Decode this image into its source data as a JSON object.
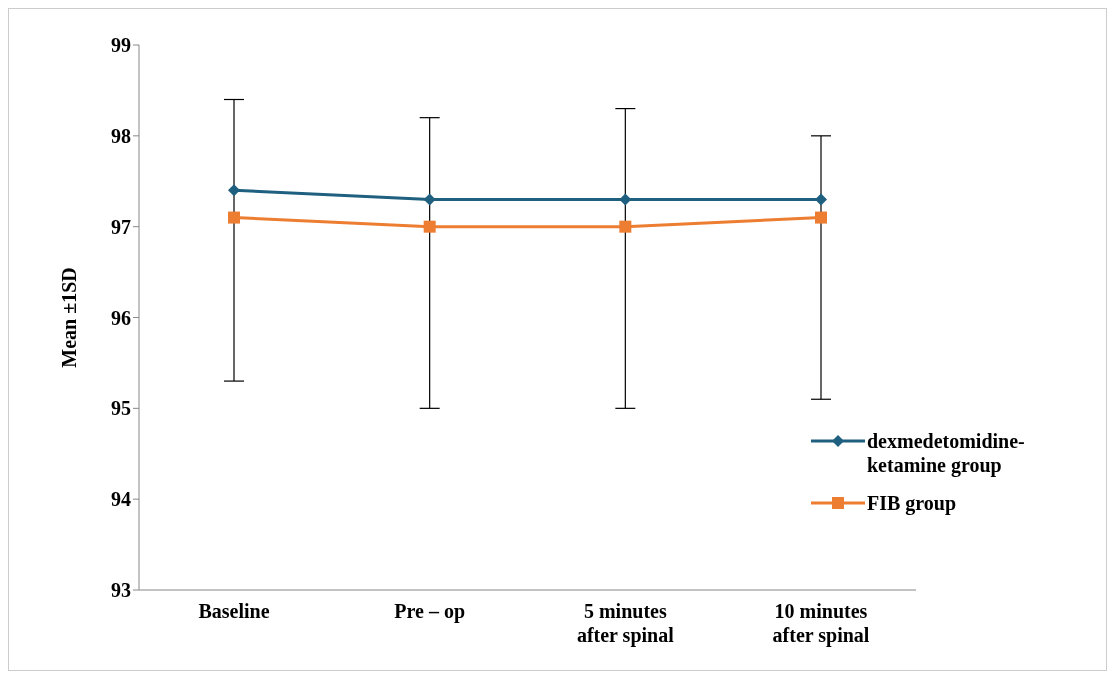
{
  "chart_data": {
    "type": "line",
    "ylabel": "Mean ±1SD",
    "categories": [
      "Baseline",
      "Pre – op",
      "5  minutes after spinal",
      "10 minutes after spinal"
    ],
    "series": [
      {
        "name": "dexmedetomidine-ketamine group",
        "color": "#1f5f7f",
        "marker": "diamond",
        "values": [
          97.4,
          97.3,
          97.3,
          97.3
        ],
        "errors": [
          [
            95.3,
            98.4
          ],
          [
            95.0,
            98.2
          ],
          [
            95.0,
            98.3
          ],
          [
            95.1,
            98.0
          ]
        ]
      },
      {
        "name": "FIB group",
        "color": "#ed7d31",
        "marker": "square",
        "values": [
          97.1,
          97.0,
          97.0,
          97.1
        ]
      }
    ],
    "ylim": [
      93,
      99
    ],
    "yticks": [
      93,
      94,
      95,
      96,
      97,
      98,
      99
    ],
    "grid": false,
    "legend": "right"
  }
}
